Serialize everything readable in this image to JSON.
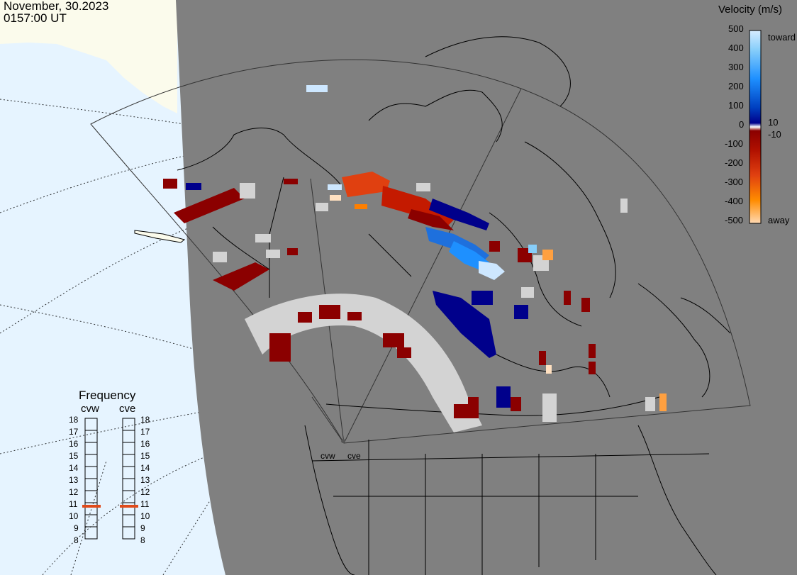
{
  "header": {
    "date": "November, 30.2023",
    "time": "0157:00 UT"
  },
  "colorbar": {
    "title": "Velocity (m/s)",
    "ticks": [
      "500",
      "400",
      "300",
      "200",
      "100",
      "10",
      "0",
      "-10",
      "-100",
      "-200",
      "-300",
      "-400",
      "-500"
    ],
    "toward_label": "toward",
    "away_label": "away",
    "colors": {
      "toward_high": "#d6ecff",
      "toward_mid": "#1e90ff",
      "toward_low": "#00008b",
      "away_low": "#8b0000",
      "away_mid": "#e04010",
      "away_high": "#ffd9b3",
      "ground_scatter": "#d3d3d3"
    }
  },
  "frequency_panel": {
    "title": "Frequency",
    "radars": [
      "cvw",
      "cve"
    ],
    "scale": [
      "18",
      "17",
      "16",
      "15",
      "14",
      "13",
      "12",
      "11",
      "10",
      "9",
      "8"
    ],
    "values_mhz": {
      "cvw": 11,
      "cve": 11
    },
    "marker_color": "#e04a1a"
  },
  "map": {
    "radar_labels": [
      "cvw",
      "cve"
    ],
    "background_land": "#808080",
    "background_ocean": "#e6f4ff",
    "background_land_outside": "#fbfbec"
  }
}
